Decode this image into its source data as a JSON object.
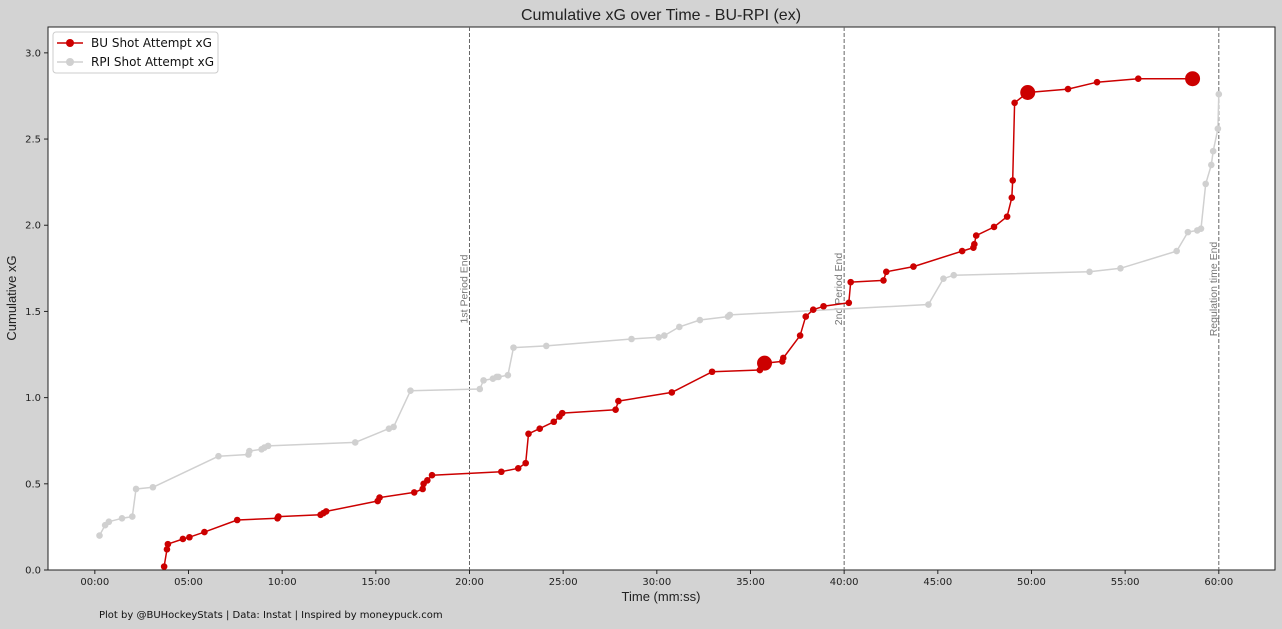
{
  "chart_data": {
    "type": "line",
    "title": "Cumulative xG over Time - BU-RPI (ex)",
    "xlabel": "Time (mm:ss)",
    "ylabel": "Cumulative xG",
    "xlim": [
      -2.5,
      63.0
    ],
    "ylim": [
      0,
      3.15
    ],
    "x_unit": "minutes",
    "x_ticks": [
      0,
      5,
      10,
      15,
      20,
      25,
      30,
      35,
      40,
      45,
      50,
      55,
      60
    ],
    "x_tick_labels": [
      "00:00",
      "05:00",
      "10:00",
      "15:00",
      "20:00",
      "25:00",
      "30:00",
      "35:00",
      "40:00",
      "45:00",
      "50:00",
      "55:00",
      "60:00"
    ],
    "y_ticks": [
      0.0,
      0.5,
      1.0,
      1.5,
      2.0,
      2.5,
      3.0
    ],
    "y_tick_labels": [
      "0.0",
      "0.5",
      "1.0",
      "1.5",
      "2.0",
      "2.5",
      "3.0"
    ],
    "grid": false,
    "legend_position": "top-left",
    "vertical_lines": [
      {
        "x": 20,
        "label": "1st Period End"
      },
      {
        "x": 40,
        "label": "2nd Period End"
      },
      {
        "x": 60,
        "label": "Regulation time End"
      }
    ],
    "series": [
      {
        "name": "BU Shot Attempt xG",
        "color": "#cc0000",
        "x": [
          3.7,
          3.85,
          3.9,
          4.7,
          5.05,
          5.85,
          7.6,
          9.75,
          9.8,
          12.05,
          12.2,
          12.35,
          15.1,
          15.2,
          17.05,
          17.5,
          17.55,
          17.75,
          18.0,
          21.7,
          22.6,
          23.0,
          23.15,
          23.75,
          24.5,
          24.8,
          24.95,
          27.8,
          27.95,
          30.8,
          32.95,
          35.5,
          35.7,
          35.75,
          35.8,
          36.7,
          36.75,
          37.65,
          37.95,
          38.35,
          38.9,
          40.25,
          40.35,
          42.1,
          42.25,
          43.7,
          46.3,
          46.9,
          46.95,
          47.05,
          48.0,
          48.7,
          48.95,
          49.0,
          49.1,
          49.8,
          51.95,
          53.5,
          55.7,
          58.6
        ],
        "y": [
          0.02,
          0.12,
          0.15,
          0.18,
          0.19,
          0.22,
          0.29,
          0.3,
          0.31,
          0.32,
          0.33,
          0.34,
          0.4,
          0.42,
          0.45,
          0.47,
          0.5,
          0.52,
          0.55,
          0.57,
          0.59,
          0.62,
          0.79,
          0.82,
          0.86,
          0.89,
          0.91,
          0.93,
          0.98,
          1.03,
          1.15,
          1.16,
          1.19,
          1.2,
          1.2,
          1.21,
          1.23,
          1.36,
          1.47,
          1.51,
          1.53,
          1.55,
          1.67,
          1.68,
          1.73,
          1.76,
          1.85,
          1.87,
          1.89,
          1.94,
          1.99,
          2.05,
          2.16,
          2.26,
          2.71,
          2.77,
          2.79,
          2.83,
          2.85,
          2.85
        ],
        "big_markers": [
          35.75,
          49.8,
          58.6
        ]
      },
      {
        "name": "RPI Shot Attempt xG",
        "color": "#d0d0d0",
        "x": [
          0.25,
          0.55,
          0.75,
          1.45,
          2.0,
          2.2,
          3.1,
          6.6,
          8.2,
          8.25,
          8.9,
          9.05,
          9.25,
          13.9,
          15.7,
          15.95,
          16.85,
          20.55,
          20.75,
          21.25,
          21.45,
          21.55,
          22.05,
          22.35,
          24.1,
          28.65,
          30.1,
          30.4,
          31.2,
          32.3,
          33.8,
          33.9,
          44.5,
          45.3,
          45.85,
          53.1,
          54.75,
          57.75,
          58.35,
          58.85,
          59.05,
          59.3,
          59.6,
          59.7,
          59.95,
          60.0
        ],
        "y": [
          0.2,
          0.26,
          0.28,
          0.3,
          0.31,
          0.47,
          0.48,
          0.66,
          0.67,
          0.69,
          0.7,
          0.71,
          0.72,
          0.74,
          0.82,
          0.83,
          1.04,
          1.05,
          1.1,
          1.11,
          1.12,
          1.12,
          1.13,
          1.29,
          1.3,
          1.34,
          1.35,
          1.36,
          1.41,
          1.45,
          1.47,
          1.48,
          1.54,
          1.69,
          1.71,
          1.73,
          1.75,
          1.85,
          1.96,
          1.97,
          1.98,
          2.24,
          2.35,
          2.43,
          2.56,
          2.76
        ],
        "big_markers": []
      }
    ]
  },
  "footer": "Plot by @BUHockeyStats | Data: Instat | Inspired by moneypuck.com"
}
